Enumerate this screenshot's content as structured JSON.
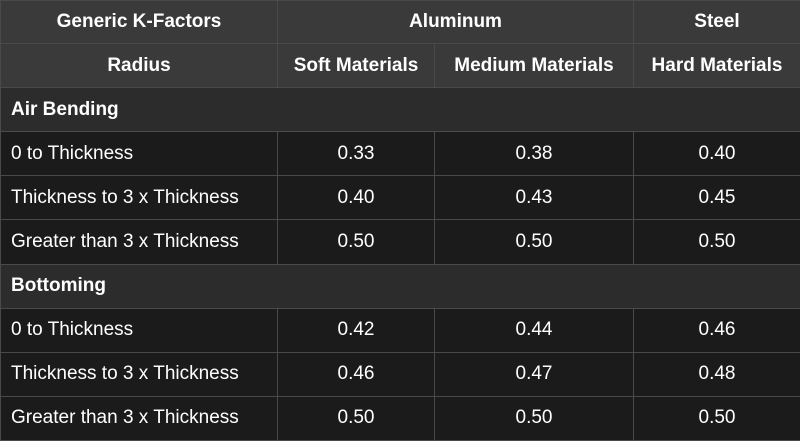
{
  "header": {
    "title": "Generic K-Factors",
    "group_aluminum": "Aluminum",
    "group_steel": "Steel",
    "col_radius": "Radius",
    "col_soft": "Soft Materials",
    "col_medium": "Medium Materials",
    "col_hard": "Hard Materials"
  },
  "sections": [
    {
      "title": "Air Bending",
      "rows": [
        {
          "radius": "0 to Thickness",
          "soft": "0.33",
          "medium": "0.38",
          "hard": "0.40"
        },
        {
          "radius": "Thickness to 3 x Thickness",
          "soft": "0.40",
          "medium": "0.43",
          "hard": "0.45"
        },
        {
          "radius": "Greater than 3 x Thickness",
          "soft": "0.50",
          "medium": "0.50",
          "hard": "0.50"
        }
      ]
    },
    {
      "title": "Bottoming",
      "rows": [
        {
          "radius": "0 to Thickness",
          "soft": "0.42",
          "medium": "0.44",
          "hard": "0.46"
        },
        {
          "radius": "Thickness to 3 x Thickness",
          "soft": "0.46",
          "medium": "0.47",
          "hard": "0.48"
        },
        {
          "radius": "Greater than 3 x Thickness",
          "soft": "0.50",
          "medium": "0.50",
          "hard": "0.50"
        }
      ]
    }
  ]
}
